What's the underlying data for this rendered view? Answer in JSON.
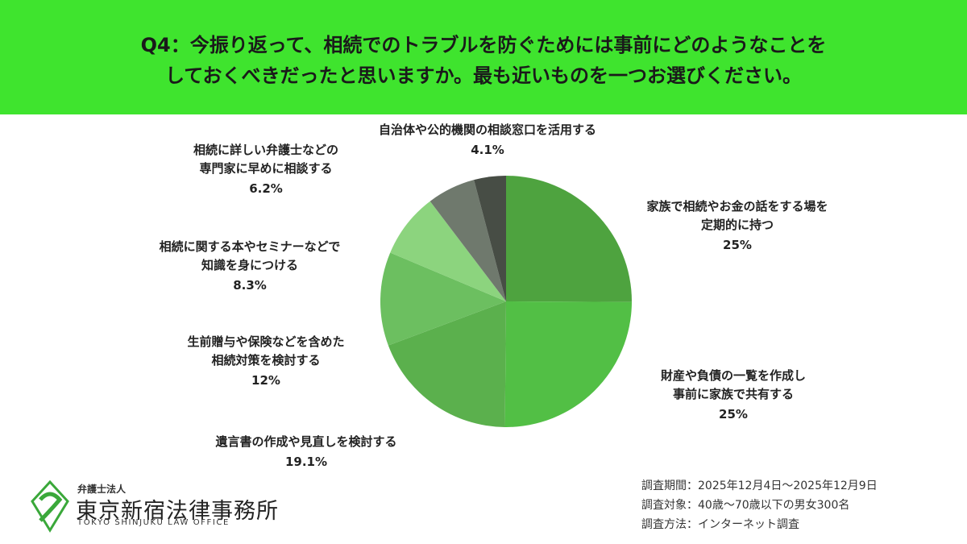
{
  "chart_data": {
    "type": "pie",
    "title": [
      "Q4：今振り返って、相続でのトラブルを防ぐためには事前にどのようなことを",
      "しておくべきだったと思いますか。最も近いものを一つお選びください。"
    ],
    "categories": [
      "家族で相続やお金の話をする場を\n定期的に持つ",
      "財産や負債の一覧を作成し\n事前に家族で共有する",
      "遺言書の作成や見直しを検討する",
      "生前贈与や保険などを含めた\n相続対策を検討する",
      "相続に関する本やセミナーなどで\n知識を身につける",
      "相続に詳しい弁護士などの\n専門家に早めに相談する",
      "自治体や公的機関の相談窓口を活用する"
    ],
    "values": [
      25,
      25,
      19.1,
      12,
      8.3,
      6.2,
      4.1
    ],
    "value_labels": [
      "25%",
      "25%",
      "19.1%",
      "12%",
      "8.3%",
      "6.2%",
      "4.1%"
    ],
    "colors": [
      "#4ea33f",
      "#52bf45",
      "#5bb04d",
      "#6cbf60",
      "#8cd47e",
      "#6f796d",
      "#474d45"
    ]
  },
  "notes": [
    "調査期間：2025年12月4日〜2025年12月9日",
    "調査対象：40歳〜70歳以下の男女300名",
    "調査方法：インターネット調査"
  ],
  "logo": {
    "sub": "弁護士法人",
    "name": "東京新宿法律事務所",
    "english": "TOKYO SHINJUKU LAW OFFICE"
  }
}
